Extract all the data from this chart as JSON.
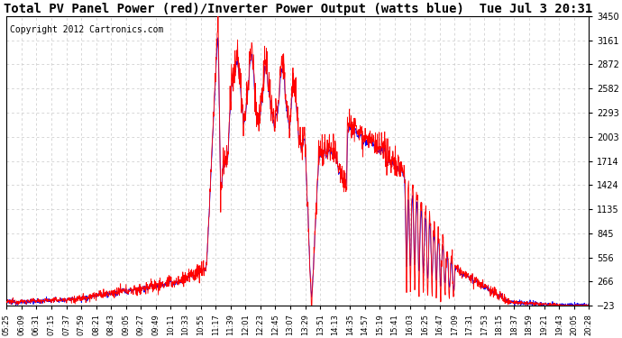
{
  "title": "Total PV Panel Power (red)/Inverter Power Output (watts blue)  Tue Jul 3 20:31",
  "copyright": "Copyright 2012 Cartronics.com",
  "yticks": [
    3450.4,
    3160.9,
    2871.5,
    2582.0,
    2292.6,
    2003.1,
    1713.7,
    1424.2,
    1134.8,
    845.3,
    555.9,
    266.4,
    -23.0
  ],
  "xtick_labels": [
    "05:25",
    "06:09",
    "06:31",
    "07:15",
    "07:37",
    "07:59",
    "08:21",
    "08:43",
    "09:05",
    "09:27",
    "09:49",
    "10:11",
    "10:33",
    "10:55",
    "11:17",
    "11:39",
    "12:01",
    "12:23",
    "12:45",
    "13:07",
    "13:29",
    "13:51",
    "14:13",
    "14:35",
    "14:57",
    "15:19",
    "15:41",
    "16:03",
    "16:25",
    "16:47",
    "17:09",
    "17:31",
    "17:53",
    "18:15",
    "18:37",
    "18:59",
    "19:21",
    "19:43",
    "20:05",
    "20:28"
  ],
  "ymin": -23.0,
  "ymax": 3450.4,
  "background_color": "#ffffff",
  "grid_color": "#c8c8c8",
  "red_color": "#ff0000",
  "blue_color": "#0000ff",
  "title_fontsize": 10,
  "copyright_fontsize": 7
}
